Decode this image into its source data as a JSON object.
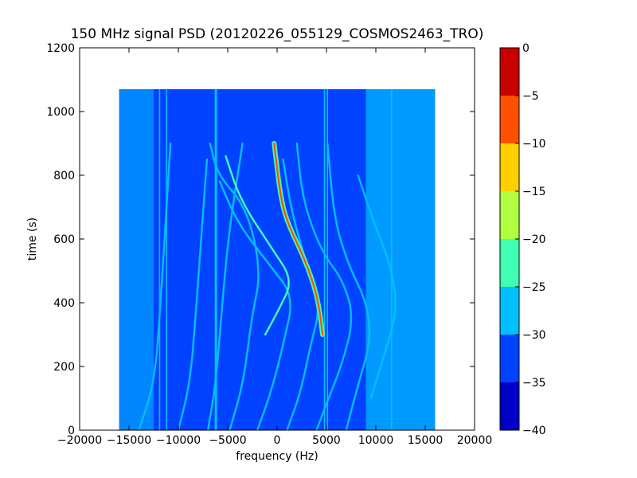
{
  "chart_data": {
    "type": "heatmap",
    "title": "150 MHz signal PSD (20120226_055129_COSMOS2463_TRO)",
    "xlabel": "frequency (Hz)",
    "ylabel": "time (s)",
    "xlim": [
      -20000,
      20000
    ],
    "ylim": [
      0,
      1200
    ],
    "x_ticks": [
      -20000,
      -15000,
      -10000,
      -5000,
      0,
      5000,
      10000,
      15000,
      20000
    ],
    "x_tick_labels": [
      "−20000",
      "−15000",
      "−10000",
      "−5000",
      "0",
      "5000",
      "10000",
      "15000",
      "20000"
    ],
    "y_ticks": [
      0,
      200,
      400,
      600,
      800,
      1000,
      1200
    ],
    "y_tick_labels": [
      "0",
      "200",
      "400",
      "600",
      "800",
      "1000",
      "1200"
    ],
    "data_extent": {
      "x": [
        -16000,
        16000
      ],
      "y": [
        0,
        1070
      ]
    },
    "colorbar": {
      "levels": [
        -40,
        -35,
        -30,
        -25,
        -20,
        -15,
        -10,
        -5,
        0
      ],
      "tick_labels": [
        "−40",
        "−35",
        "−30",
        "−25",
        "−20",
        "−15",
        "−10",
        "−5",
        "0"
      ],
      "colors": [
        "#0000c8",
        "#0042ff",
        "#00c0ff",
        "#40ffb0",
        "#b0ff40",
        "#ffd000",
        "#ff5000",
        "#c80000"
      ]
    },
    "background_level_color": "#0042ff",
    "noise_level_color": "#00c0ff",
    "grid": false,
    "features": {
      "stationary_lines_hz": [
        -6200,
        -11900,
        -11200,
        5100,
        4800,
        11600
      ],
      "doppler_curves": [
        {
          "level": "#00c0ff",
          "points": [
            [
              -14000,
              0
            ],
            [
              -12400,
              150
            ],
            [
              -11800,
              400
            ],
            [
              -11300,
              650
            ],
            [
              -10800,
              900
            ]
          ]
        },
        {
          "level": "#00c0ff",
          "points": [
            [
              -10000,
              0
            ],
            [
              -8800,
              150
            ],
            [
              -8200,
              380
            ],
            [
              -7700,
              600
            ],
            [
              -7100,
              850
            ]
          ]
        },
        {
          "level": "#00c0ff",
          "points": [
            [
              -7000,
              0
            ],
            [
              -6200,
              150
            ],
            [
              -5600,
              380
            ],
            [
              -4900,
              620
            ],
            [
              -3500,
              900
            ]
          ]
        },
        {
          "level": "#00c0ff",
          "points": [
            [
              -4800,
              0
            ],
            [
              -3400,
              150
            ],
            [
              -2600,
              350
            ],
            [
              -1600,
              500
            ],
            [
              -3100,
              700
            ],
            [
              -6000,
              800
            ],
            [
              -6800,
              900
            ]
          ]
        },
        {
          "level": "#00c0ff",
          "points": [
            [
              -2000,
              0
            ],
            [
              -500,
              130
            ],
            [
              700,
              280
            ],
            [
              1700,
              420
            ],
            [
              -800,
              520
            ],
            [
              -4000,
              650
            ],
            [
              -5800,
              780
            ]
          ]
        },
        {
          "level": "#40ffb0",
          "points": [
            [
              -1200,
              300
            ],
            [
              200,
              380
            ],
            [
              1600,
              470
            ],
            [
              -500,
              570
            ],
            [
              -3700,
              720
            ],
            [
              -5200,
              860
            ]
          ]
        },
        {
          "level": "#00c0ff",
          "points": [
            [
              1000,
              0
            ],
            [
              2400,
              120
            ],
            [
              3400,
              270
            ],
            [
              4200,
              360
            ],
            [
              4000,
              420
            ],
            [
              3000,
              520
            ],
            [
              1500,
              680
            ],
            [
              600,
              850
            ]
          ]
        },
        {
          "level": "#ff5000",
          "points": [
            [
              4600,
              300
            ],
            [
              4300,
              380
            ],
            [
              3700,
              460
            ],
            [
              2600,
              550
            ],
            [
              1200,
              640
            ],
            [
              400,
              720
            ],
            [
              -300,
              900
            ]
          ]
        },
        {
          "level": "#00c0ff",
          "points": [
            [
              4000,
              0
            ],
            [
              5200,
              100
            ],
            [
              6500,
              200
            ],
            [
              7800,
              350
            ],
            [
              6700,
              470
            ],
            [
              4500,
              560
            ],
            [
              2600,
              720
            ],
            [
              2000,
              900
            ]
          ]
        },
        {
          "level": "#00c0ff",
          "points": [
            [
              7000,
              0
            ],
            [
              8000,
              120
            ],
            [
              9500,
              280
            ],
            [
              9100,
              400
            ],
            [
              7200,
              520
            ],
            [
              5800,
              660
            ],
            [
              5100,
              900
            ]
          ]
        },
        {
          "level": "#00c0ff",
          "points": [
            [
              9500,
              100
            ],
            [
              11000,
              250
            ],
            [
              12200,
              380
            ],
            [
              11500,
              520
            ],
            [
              9700,
              660
            ],
            [
              8200,
              800
            ]
          ]
        }
      ]
    }
  }
}
